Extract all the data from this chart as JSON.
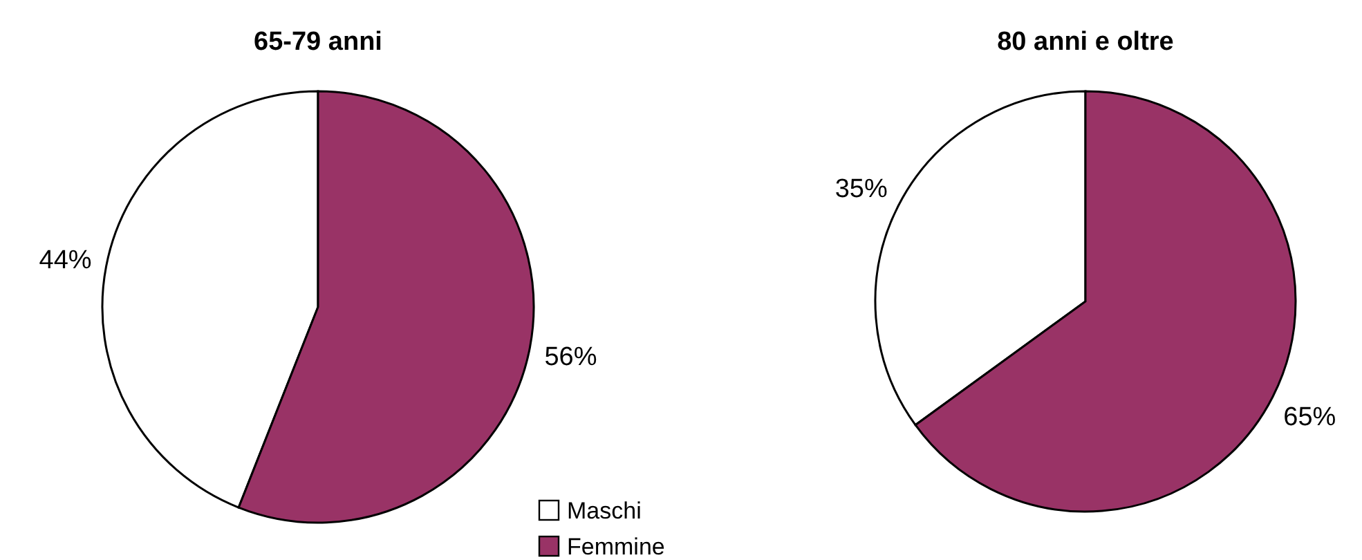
{
  "chart_data": [
    {
      "type": "pie",
      "title": "65-79 anni",
      "categories": [
        "Maschi",
        "Femmine"
      ],
      "values": [
        44,
        56
      ],
      "colors": [
        "#ffffff",
        "#993366"
      ],
      "value_labels": [
        "44%",
        "56%"
      ],
      "legend": "bottom right"
    },
    {
      "type": "pie",
      "title": "80 anni e oltre",
      "categories": [
        null,
        null
      ],
      "values": [
        35,
        65
      ],
      "colors": [
        "#ffffff",
        "#993366"
      ],
      "value_labels": [
        "35%",
        "65%"
      ]
    }
  ]
}
